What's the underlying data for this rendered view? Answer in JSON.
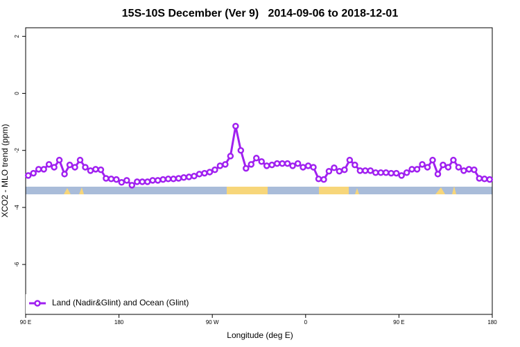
{
  "chart_data": {
    "type": "line",
    "title": "15S-10S December (Ver 9)   2014-09-06 to 2018-12-01",
    "x_label": "Longitude (deg E)",
    "y_label": "XCO2 - MLO trend (ppm)",
    "x": [
      92.5,
      97.5,
      102.5,
      107.5,
      112.5,
      117.5,
      122.5,
      127.5,
      132.5,
      137.5,
      142.5,
      147.5,
      152.5,
      157.5,
      162.5,
      167.5,
      172.5,
      177.5,
      182.5,
      187.5,
      192.5,
      197.5,
      202.5,
      207.5,
      212.5,
      217.5,
      222.5,
      227.5,
      232.5,
      237.5,
      242.5,
      247.5,
      252.5,
      257.5,
      262.5,
      267.5,
      272.5,
      277.5,
      282.5,
      287.5,
      292.5,
      297.5,
      302.5,
      307.5,
      312.5,
      317.5,
      322.5,
      327.5,
      332.5,
      337.5,
      342.5,
      347.5,
      352.5,
      357.5,
      362.5,
      367.5,
      372.5,
      377.5,
      382.5,
      387.5,
      392.5,
      397.5,
      402.5,
      407.5,
      412.5,
      417.5,
      422.5,
      427.5,
      432.5,
      437.5,
      442.5,
      447.5,
      452.5,
      457.5,
      462.5,
      467.5,
      472.5,
      477.5,
      482.5,
      487.5,
      492.5,
      497.5,
      502.5,
      507.5,
      512.5,
      517.5,
      522.5,
      527.5,
      532.5,
      537.5
    ],
    "series": [
      {
        "name": "Land (Nadir&Glint) and Ocean (Glint)",
        "color": "#a020f0",
        "values": [
          -2.88,
          -2.8,
          -2.66,
          -2.66,
          -2.49,
          -2.59,
          -2.34,
          -2.83,
          -2.51,
          -2.59,
          -2.34,
          -2.59,
          -2.71,
          -2.66,
          -2.68,
          -2.98,
          -3.0,
          -3.02,
          -3.12,
          -3.05,
          -3.22,
          -3.1,
          -3.1,
          -3.1,
          -3.05,
          -3.05,
          -3.02,
          -3.0,
          -3.0,
          -2.98,
          -2.95,
          -2.93,
          -2.9,
          -2.83,
          -2.8,
          -2.76,
          -2.68,
          -2.54,
          -2.49,
          -2.2,
          -1.15,
          -2.0,
          -2.63,
          -2.49,
          -2.27,
          -2.39,
          -2.54,
          -2.51,
          -2.46,
          -2.46,
          -2.46,
          -2.54,
          -2.46,
          -2.59,
          -2.54,
          -2.59,
          -3.0,
          -3.02,
          -2.73,
          -2.61,
          -2.73,
          -2.68,
          -2.34,
          -2.51,
          -2.71,
          -2.71,
          -2.71,
          -2.78,
          -2.78,
          -2.78,
          -2.8,
          -2.8,
          -2.88,
          -2.78,
          -2.66,
          -2.66,
          -2.49,
          -2.59,
          -2.34,
          -2.83,
          -2.51,
          -2.59,
          -2.34,
          -2.59,
          -2.71,
          -2.66,
          -2.68,
          -2.98,
          -3.0,
          -3.02
        ]
      }
    ],
    "xlim": [
      90,
      540
    ],
    "xticks": [
      {
        "value": 90,
        "label": "90 E"
      },
      180,
      {
        "value": 270,
        "label": "90 W"
      },
      {
        "value": 360,
        "label": "0"
      },
      {
        "value": 450,
        "label": "90 E"
      },
      {
        "value": 540,
        "label": "180"
      }
    ],
    "ylim": [
      -7.75,
      2.3
    ],
    "yticks": [
      2,
      0,
      -2,
      -4,
      -6
    ],
    "legend": "bottom-left"
  }
}
